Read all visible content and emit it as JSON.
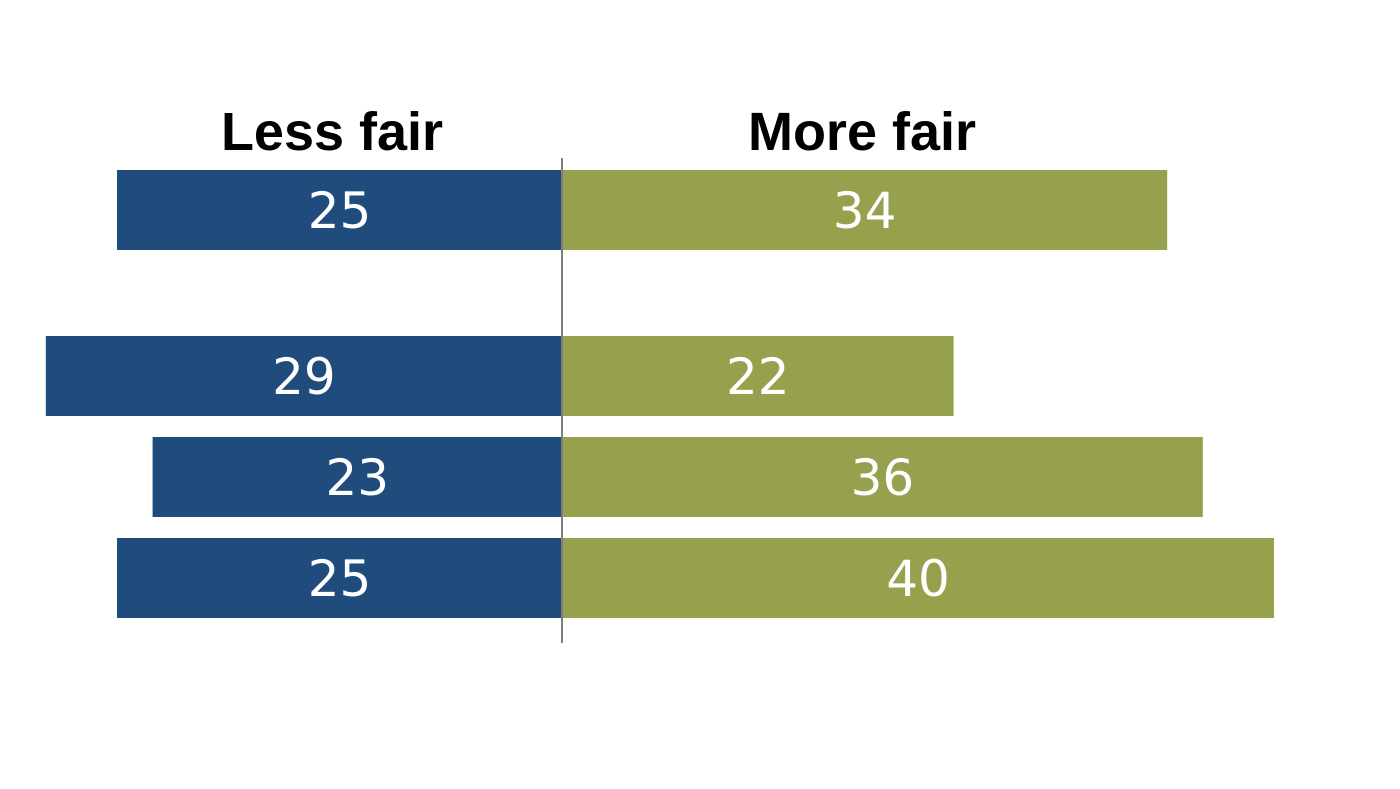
{
  "chart_data": {
    "type": "bar",
    "orientation": "horizontal-diverging",
    "headers": {
      "left": "Less fair",
      "right": "More fair"
    },
    "series": [
      {
        "name": "Less fair",
        "color": "#1f4b7d",
        "values": [
          25,
          null,
          29,
          23,
          25
        ]
      },
      {
        "name": "More fair",
        "color": "#96a04d",
        "values": [
          34,
          null,
          22,
          36,
          40
        ]
      }
    ],
    "grid": false,
    "legend": "none"
  }
}
